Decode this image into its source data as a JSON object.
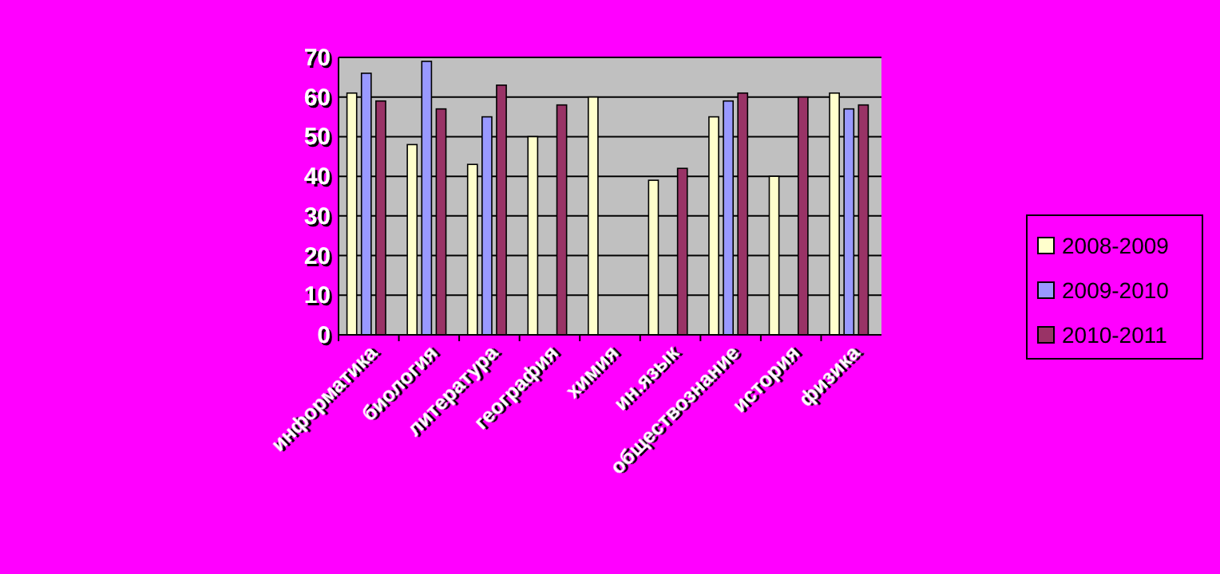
{
  "chart_data": {
    "type": "bar",
    "categories": [
      "информатика",
      "биология",
      "литература",
      "география",
      "химия",
      "ин.язык",
      "обществознание",
      "история",
      "физика"
    ],
    "series": [
      {
        "name": "2008-2009",
        "color": "#ffffcc",
        "values": [
          61,
          48,
          43,
          50,
          60,
          39,
          55,
          40,
          61
        ]
      },
      {
        "name": "2009-2010",
        "color": "#9999ff",
        "values": [
          66,
          69,
          55,
          0,
          0,
          0,
          59,
          0,
          57
        ]
      },
      {
        "name": "2010-2011",
        "color": "#993366",
        "values": [
          59,
          57,
          63,
          58,
          0,
          42,
          61,
          60,
          58
        ]
      }
    ],
    "ylim": [
      0,
      70
    ],
    "yticks": [
      0,
      10,
      20,
      30,
      40,
      50,
      60,
      70
    ],
    "grid": "y",
    "legend": "right"
  }
}
